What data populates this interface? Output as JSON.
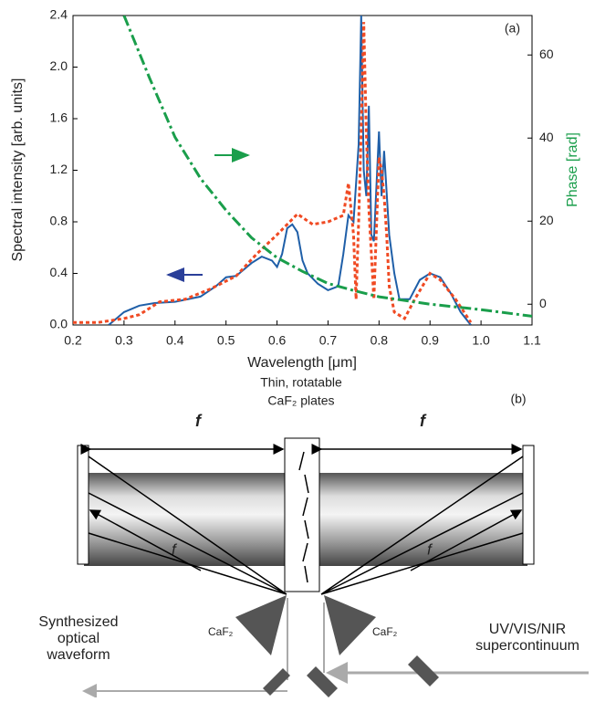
{
  "chart_data": {
    "type": "line",
    "annotation": "(a)",
    "xlabel": "Wavelength [μm]",
    "ylabel": "Spectral intensity [arb. units]",
    "y2label": "Phase [rad]",
    "y2label_color": "#1a9e4b",
    "xlim": [
      0.2,
      1.1
    ],
    "xticks": [
      0.2,
      0.3,
      0.4,
      0.5,
      0.6,
      0.7,
      0.8,
      0.9,
      {
        "value": 1.0,
        "label": "1.0"
      },
      1.1
    ],
    "ylim": [
      0,
      2.4
    ],
    "yticks": [
      {
        "value": 0,
        "label": "0.0"
      },
      0.4,
      0.8,
      1.2,
      1.6,
      {
        "value": 2,
        "label": "2.0"
      },
      2.4
    ],
    "y2lim": [
      -5,
      69.5
    ],
    "y2ticks": [
      0,
      20,
      40,
      60
    ],
    "series": [
      {
        "color": "#1f5fa8",
        "style": "solid",
        "x": [
          0.27,
          0.3,
          0.33,
          0.36,
          0.4,
          0.45,
          0.48,
          0.5,
          0.52,
          0.55,
          0.57,
          0.59,
          0.6,
          0.61,
          0.62,
          0.63,
          0.64,
          0.65,
          0.66,
          0.68,
          0.7,
          0.72,
          0.73,
          0.74,
          0.75,
          0.76,
          0.765,
          0.77,
          0.775,
          0.78,
          0.785,
          0.79,
          0.8,
          0.805,
          0.81,
          0.82,
          0.83,
          0.84,
          0.86,
          0.88,
          0.9,
          0.92,
          0.94,
          0.96,
          0.98
        ],
        "values": [
          0,
          0.1,
          0.15,
          0.17,
          0.18,
          0.22,
          0.3,
          0.37,
          0.38,
          0.48,
          0.53,
          0.5,
          0.45,
          0.55,
          0.75,
          0.78,
          0.72,
          0.5,
          0.4,
          0.32,
          0.27,
          0.3,
          0.55,
          0.85,
          0.8,
          1.4,
          2.4,
          1.2,
          1.0,
          1.7,
          0.7,
          0.65,
          1.5,
          1.0,
          1.35,
          0.7,
          0.4,
          0.2,
          0.2,
          0.35,
          0.4,
          0.37,
          0.25,
          0.1,
          0
        ]
      },
      {
        "color": "#f04a23",
        "style": "dotted",
        "x": [
          0.2,
          0.25,
          0.3,
          0.33,
          0.37,
          0.42,
          0.47,
          0.52,
          0.56,
          0.6,
          0.64,
          0.67,
          0.7,
          0.73,
          0.74,
          0.75,
          0.755,
          0.76,
          0.765,
          0.77,
          0.775,
          0.78,
          0.79,
          0.8,
          0.805,
          0.81,
          0.815,
          0.82,
          0.83,
          0.85,
          0.87,
          0.9,
          0.92,
          0.95,
          0.98
        ],
        "values": [
          0.02,
          0.02,
          0.05,
          0.08,
          0.18,
          0.2,
          0.28,
          0.38,
          0.55,
          0.7,
          0.86,
          0.78,
          0.8,
          0.85,
          1.1,
          0.7,
          0.2,
          0.8,
          1.5,
          2.35,
          1.5,
          0.9,
          0.2,
          1.3,
          1.2,
          1.0,
          0.7,
          0.3,
          0.1,
          0.05,
          0.2,
          0.4,
          0.35,
          0.2,
          0.02
        ]
      },
      {
        "color": "#1a9e4b",
        "style": "dashdot",
        "axis": "y2",
        "x": [
          0.3,
          0.35,
          0.4,
          0.45,
          0.5,
          0.55,
          0.6,
          0.65,
          0.7,
          0.75,
          0.8,
          0.9,
          1.0,
          1.1
        ],
        "values": [
          69.5,
          54.5,
          40.2,
          30.3,
          22.6,
          16,
          11.2,
          7.9,
          5,
          3.3,
          1.8,
          0,
          -1.3,
          -2.9
        ]
      }
    ]
  },
  "diagram": {
    "label": "(b)",
    "plates_line1": "Thin, rotatable",
    "plates_line2": "CaF₂ plates",
    "focal_top_left": "f",
    "focal_top_right": "f",
    "focal_left": "f",
    "focal_right": "f",
    "prism_left": "CaF₂",
    "prism_right": "CaF₂",
    "output_line1": "Synthesized",
    "output_line2": "optical",
    "output_line3": "waveform",
    "input_line1": "UV/VIS/NIR",
    "input_line2": "supercontinuum"
  }
}
